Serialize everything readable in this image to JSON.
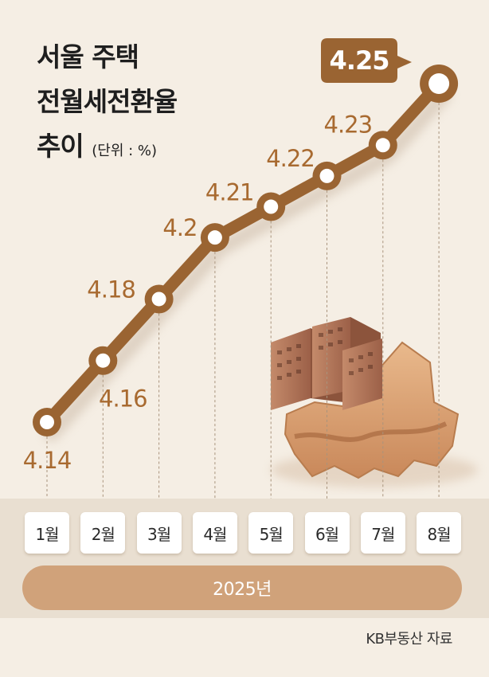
{
  "title": {
    "line1": "서울 주택",
    "line2": "전월세전환율",
    "line3": "추이",
    "unit": "(단위 : %)"
  },
  "year_label": "2025년",
  "source": "KB부동산 자료",
  "colors": {
    "line": "#9a6432",
    "label": "#a86a30",
    "callout": "#9a6432",
    "year_bar": "#d0a27a",
    "background": "#f5eee4",
    "map": "#d49a68"
  },
  "chart_data": {
    "type": "line",
    "categories": [
      "1월",
      "2월",
      "3월",
      "4월",
      "5월",
      "6월",
      "7월",
      "8월"
    ],
    "series": [
      {
        "values": [
          4.14,
          4.16,
          4.18,
          4.2,
          4.21,
          4.22,
          4.23,
          4.25
        ]
      }
    ],
    "value_labels": [
      "4.14",
      "4.16",
      "4.18",
      "4.2",
      "4.21",
      "4.22",
      "4.23",
      "4.25"
    ],
    "highlight_index": 7,
    "ylim": [
      4.14,
      4.25
    ],
    "grid": false,
    "legend": "none"
  }
}
